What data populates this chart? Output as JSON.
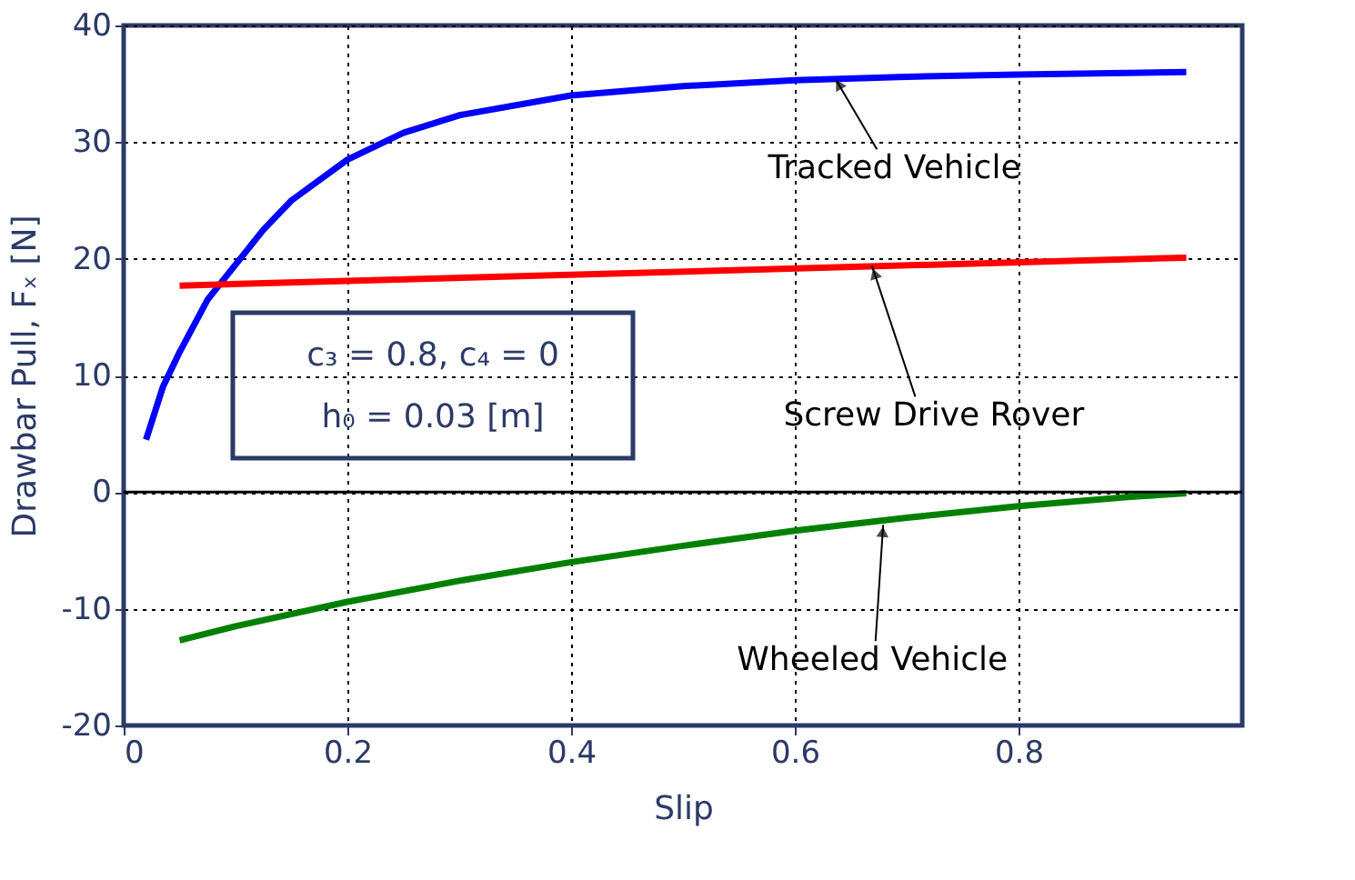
{
  "chart_data": {
    "type": "line",
    "xlabel": "Slip",
    "ylabel": "Drawbar Pull, Fₓ [N]",
    "xlim": [
      0,
      1
    ],
    "xticks": [
      0,
      0.2,
      0.4,
      0.6,
      0.8
    ],
    "ylim": [
      -20,
      40
    ],
    "yticks": [
      -20,
      -10,
      0,
      10,
      20,
      30,
      40
    ],
    "grid": true,
    "legend": false,
    "line_style": "solid",
    "marker": "none",
    "series": [
      {
        "color": "#0000ff",
        "x": [
          0.02,
          0.035,
          0.05,
          0.075,
          0.1,
          0.125,
          0.15,
          0.2,
          0.25,
          0.3,
          0.4,
          0.5,
          0.6,
          0.7,
          0.8,
          0.95
        ],
        "values": [
          4.5,
          9,
          12,
          16.5,
          19.5,
          22.5,
          25,
          28.5,
          30.8,
          32.3,
          34,
          34.8,
          35.3,
          35.6,
          35.8,
          36
        ]
      },
      {
        "color": "#ff0000",
        "x": [
          0.05,
          0.95
        ],
        "values": [
          17.7,
          20.1
        ]
      },
      {
        "color": "#008000",
        "x": [
          0.05,
          0.1,
          0.2,
          0.3,
          0.4,
          0.5,
          0.6,
          0.7,
          0.8,
          0.9,
          0.95
        ],
        "values": [
          -12.7,
          -11.5,
          -9.4,
          -7.6,
          -6,
          -4.6,
          -3.3,
          -2.2,
          -1.2,
          -0.4,
          -0.1
        ]
      }
    ],
    "ref_lines": [
      {
        "axis": "y",
        "value": 0,
        "color": "#000000"
      }
    ],
    "annotations": [
      "c₃ = 0.8, c₄ = 0",
      "h₀ = 0.03 [m]",
      {
        "text": "Tracked Vehicle",
        "x": 0.637,
        "y": 35.3
      },
      {
        "text": "Screw Drive Rover",
        "x": 0.669,
        "y": 19.4
      },
      {
        "text": "Wheeled Vehicle",
        "x": 0.679,
        "y": -2.8
      }
    ]
  }
}
